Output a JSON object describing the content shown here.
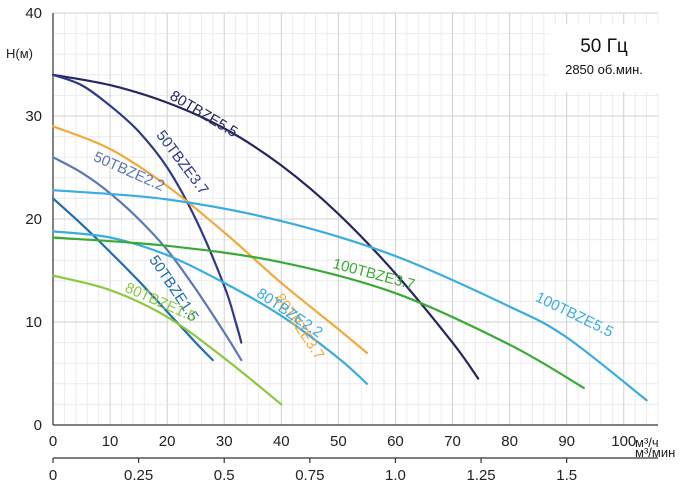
{
  "chart_data": {
    "type": "line",
    "title": "",
    "ylabel": "H(м)",
    "xlabel": "м³/ч",
    "x2label": "м³/мин",
    "ylim": [
      0,
      40
    ],
    "xlim": [
      0,
      106
    ],
    "x2lim": [
      0,
      1.7667
    ],
    "grid": true,
    "yticks": [
      0,
      10,
      20,
      30,
      40
    ],
    "xticks": [
      0,
      10,
      20,
      30,
      40,
      50,
      60,
      70,
      80,
      90,
      100
    ],
    "x2ticks": [
      {
        "value": 0,
        "label": "0"
      },
      {
        "value": 0.25,
        "label": "0.25"
      },
      {
        "value": 0.5,
        "label": "0.5"
      },
      {
        "value": 0.75,
        "label": "0.75"
      },
      {
        "value": 1.0,
        "label": "1.0"
      },
      {
        "value": 1.25,
        "label": "1.25"
      },
      {
        "value": 1.5,
        "label": "1.5"
      }
    ],
    "annotations": {
      "frequency": "50 Гц",
      "speed": "2850 об.мин."
    },
    "series": [
      {
        "name": "80TBZE5.5",
        "color": "#25275e",
        "x": [
          0,
          10,
          20,
          30,
          40,
          50,
          60,
          70,
          74.5
        ],
        "y": [
          34,
          33,
          31.3,
          28.8,
          25.2,
          20.5,
          14.7,
          8,
          4.5
        ]
      },
      {
        "name": "50TBZE3.7",
        "color": "#2e3a87",
        "x": [
          0,
          5,
          10,
          15,
          20,
          25,
          30,
          32,
          33
        ],
        "y": [
          34,
          33,
          31,
          28.5,
          25,
          20,
          13.5,
          10,
          8
        ]
      },
      {
        "name": "50TBZE2.2",
        "color": "#5b78b4",
        "x": [
          0,
          5,
          10,
          15,
          20,
          25,
          30,
          33
        ],
        "y": [
          26,
          24.5,
          22.5,
          20,
          17,
          13.2,
          9,
          6.3
        ]
      },
      {
        "name": "80TBZE3.7",
        "color": "#f2a93b",
        "x": [
          0,
          10,
          20,
          30,
          40,
          50,
          55
        ],
        "y": [
          29,
          26.8,
          23.2,
          18.7,
          13.8,
          9.3,
          7
        ]
      },
      {
        "name": "50TBZE1.5",
        "color": "#1f6eb0",
        "x": [
          0,
          5,
          10,
          15,
          20,
          25,
          28
        ],
        "y": [
          22,
          19.5,
          16.8,
          14,
          11,
          8,
          6.3
        ]
      },
      {
        "name": "80TBZE2.2",
        "color": "#3aace0",
        "x": [
          0,
          10,
          20,
          30,
          40,
          50,
          55
        ],
        "y": [
          18.8,
          18.2,
          16.5,
          13.8,
          10.6,
          6.5,
          4
        ]
      },
      {
        "name": "80TBZE1.5",
        "color": "#8cc83f",
        "x": [
          0,
          10,
          20,
          30,
          40
        ],
        "y": [
          14.5,
          13.1,
          10.5,
          6.5,
          2
        ]
      },
      {
        "name": "100TBZE3.7",
        "color": "#3aaa35",
        "x": [
          0,
          20,
          40,
          60,
          80,
          93
        ],
        "y": [
          18.2,
          17.4,
          15.8,
          12.8,
          7.8,
          3.6
        ]
      },
      {
        "name": "100TBZE5.5",
        "color": "#3aace0",
        "x": [
          0,
          20,
          40,
          60,
          80,
          90,
          104
        ],
        "y": [
          22.8,
          21.9,
          19.8,
          16.4,
          11.5,
          8.5,
          2.4
        ]
      }
    ]
  }
}
